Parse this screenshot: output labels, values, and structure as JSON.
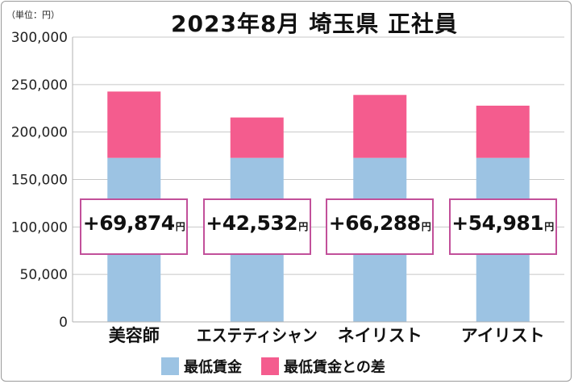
{
  "unit_label": "（単位：円）",
  "legend": {
    "base_label": "最低賃金",
    "diff_label": "最低賃金との差"
  },
  "colors": {
    "base": "#9cc3e3",
    "diff": "#f45c8e",
    "box_border": "#c2509a",
    "grid": "#c8c8c8"
  },
  "chart_data": {
    "type": "bar",
    "stacked": true,
    "title": "2023年8月 埼玉県 正社員",
    "categories": [
      "美容師",
      "エステティシャン",
      "ネイリスト",
      "アイリスト"
    ],
    "series": [
      {
        "name": "最低賃金",
        "values": [
          172800,
          172800,
          172800,
          172800
        ]
      },
      {
        "name": "最低賃金との差",
        "values": [
          69874,
          42532,
          66288,
          54981
        ]
      }
    ],
    "diff_labels": [
      "+69,874",
      "+42,532",
      "+66,288",
      "+54,981"
    ],
    "diff_unit": "円",
    "ylim": [
      0,
      300000
    ],
    "yticks": [
      0,
      50000,
      100000,
      150000,
      200000,
      250000,
      300000
    ],
    "ytick_labels": [
      "0",
      "50,000",
      "100,000",
      "150,000",
      "200,000",
      "250,000",
      "300,000"
    ],
    "grid": true,
    "legend_position": "bottom"
  }
}
